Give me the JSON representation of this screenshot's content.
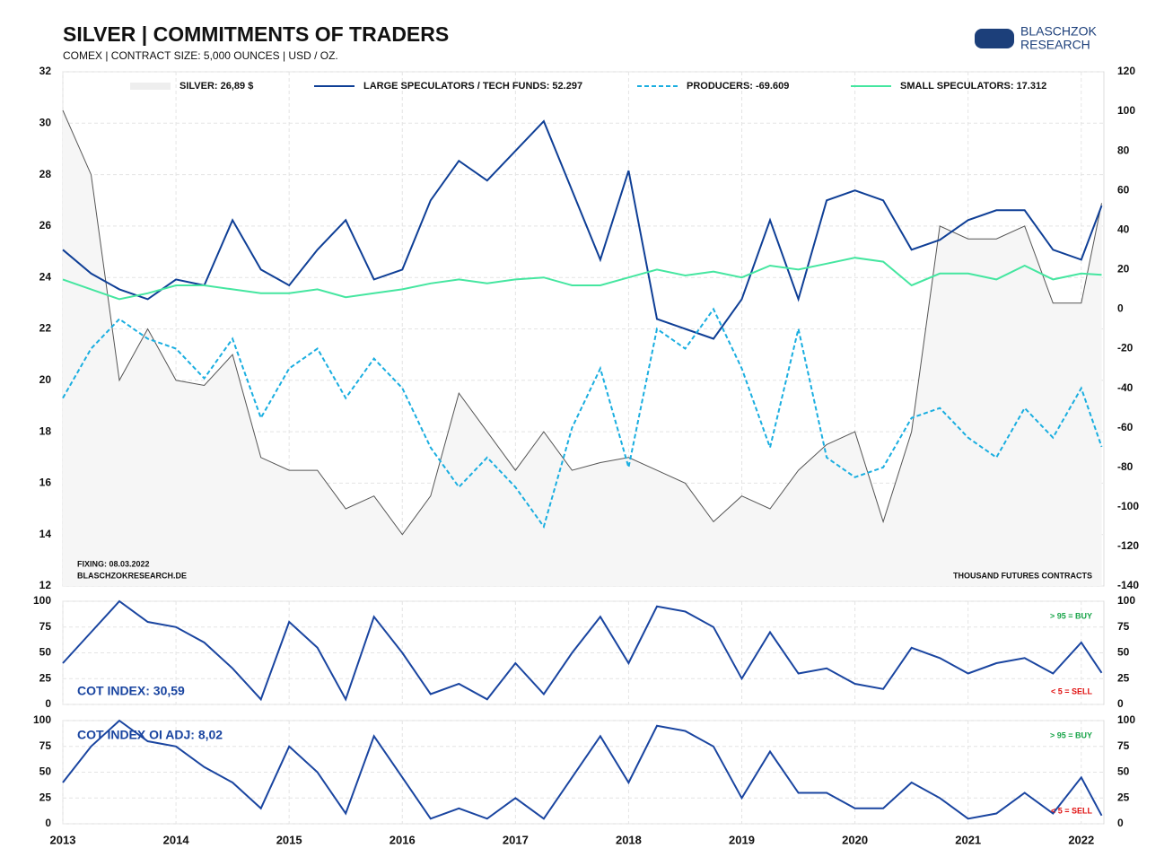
{
  "logo": {
    "line1": "BLASCHZOK",
    "line2": "RESEARCH"
  },
  "chart_data": [
    {
      "type": "line",
      "title": "SILVER | COMMITMENTS OF TRADERS",
      "subtitle": "COMEX | CONTRACT SIZE: 5,000 OUNCES | USD / OZ.",
      "x": [
        2013,
        2013.25,
        2013.5,
        2013.75,
        2014,
        2014.25,
        2014.5,
        2014.75,
        2015,
        2015.25,
        2015.5,
        2015.75,
        2016,
        2016.25,
        2016.5,
        2016.75,
        2017,
        2017.25,
        2017.5,
        2017.75,
        2018,
        2018.25,
        2018.5,
        2018.75,
        2019,
        2019.25,
        2019.5,
        2019.75,
        2020,
        2020.25,
        2020.5,
        2020.75,
        2021,
        2021.25,
        2021.5,
        2021.75,
        2022,
        2022.18
      ],
      "xlim": [
        2013,
        2022.2
      ],
      "ylim": [
        12,
        32
      ],
      "yticks": [
        12,
        14,
        16,
        18,
        20,
        22,
        24,
        26,
        28,
        30,
        32
      ],
      "y2lim": [
        -140,
        120
      ],
      "y2ticks": [
        -140,
        -120,
        -100,
        -80,
        -60,
        -40,
        -20,
        0,
        20,
        40,
        60,
        80,
        100,
        120
      ],
      "grid": true,
      "legend": "top",
      "series": [
        {
          "name": "SILVER: 26,89 $",
          "color": "#555555",
          "area": true,
          "axis": "y",
          "values": [
            30.5,
            28,
            20,
            22,
            20,
            19.8,
            21,
            17,
            16.5,
            16.5,
            15,
            15.5,
            14,
            15.5,
            19.5,
            18,
            16.5,
            18,
            16.5,
            16.8,
            17,
            16.5,
            16,
            14.5,
            15.5,
            15,
            16.5,
            17.5,
            18,
            14.5,
            18,
            26,
            25.5,
            25.5,
            26,
            23,
            23,
            26.89
          ]
        },
        {
          "name": "LARGE SPECULATORS / TECH FUNDS: 52.297",
          "color": "#0f3f96",
          "axis": "y2",
          "values": [
            30,
            18,
            10,
            5,
            15,
            12,
            45,
            20,
            12,
            30,
            45,
            15,
            20,
            55,
            75,
            65,
            80,
            95,
            60,
            25,
            70,
            -5,
            -10,
            -15,
            5,
            45,
            5,
            55,
            60,
            55,
            30,
            35,
            45,
            50,
            50,
            30,
            25,
            52.297
          ]
        },
        {
          "name": "PRODUCERS: -69.609",
          "color": "#1aaee0",
          "dashed": true,
          "axis": "y2",
          "values": [
            -45,
            -20,
            -5,
            -15,
            -20,
            -35,
            -15,
            -55,
            -30,
            -20,
            -45,
            -25,
            -40,
            -70,
            -90,
            -75,
            -90,
            -110,
            -60,
            -30,
            -80,
            -10,
            -20,
            0,
            -30,
            -70,
            -10,
            -75,
            -85,
            -80,
            -55,
            -50,
            -65,
            -75,
            -50,
            -65,
            -40,
            -69.609
          ]
        },
        {
          "name": "SMALL SPECULATORS: 17.312",
          "color": "#45e6a0",
          "axis": "y2",
          "values": [
            15,
            10,
            5,
            8,
            12,
            12,
            10,
            8,
            8,
            10,
            6,
            8,
            10,
            13,
            15,
            13,
            15,
            16,
            12,
            12,
            16,
            20,
            17,
            19,
            16,
            22,
            20,
            23,
            26,
            24,
            12,
            18,
            18,
            15,
            22,
            15,
            18,
            17.312
          ]
        }
      ],
      "notes": {
        "fixing": "FIXING: 08.03.2022",
        "site": "BLASCHZOKRESEARCH.DE",
        "units": "THOUSAND FUTURES CONTRACTS"
      }
    },
    {
      "type": "line",
      "x": [
        2013,
        2013.25,
        2013.5,
        2013.75,
        2014,
        2014.25,
        2014.5,
        2014.75,
        2015,
        2015.25,
        2015.5,
        2015.75,
        2016,
        2016.25,
        2016.5,
        2016.75,
        2017,
        2017.25,
        2017.5,
        2017.75,
        2018,
        2018.25,
        2018.5,
        2018.75,
        2019,
        2019.25,
        2019.5,
        2019.75,
        2020,
        2020.25,
        2020.5,
        2020.75,
        2021,
        2021.25,
        2021.5,
        2021.75,
        2022,
        2022.18
      ],
      "xlim": [
        2013,
        2022.2
      ],
      "ylim": [
        0,
        100
      ],
      "yticks": [
        0,
        25,
        50,
        75,
        100
      ],
      "grid": true,
      "series": [
        {
          "name": "COT INDEX: 30,59",
          "color": "#1a45a0",
          "values": [
            40,
            70,
            100,
            80,
            75,
            60,
            35,
            5,
            80,
            55,
            5,
            85,
            50,
            10,
            20,
            5,
            40,
            10,
            50,
            85,
            40,
            95,
            90,
            75,
            25,
            70,
            30,
            35,
            20,
            15,
            55,
            45,
            30,
            40,
            45,
            30,
            60,
            30.59
          ]
        }
      ],
      "notes": {
        "buy": "> 95 = BUY",
        "sell": "< 5 = SELL"
      }
    },
    {
      "type": "line",
      "x": [
        2013,
        2013.25,
        2013.5,
        2013.75,
        2014,
        2014.25,
        2014.5,
        2014.75,
        2015,
        2015.25,
        2015.5,
        2015.75,
        2016,
        2016.25,
        2016.5,
        2016.75,
        2017,
        2017.25,
        2017.5,
        2017.75,
        2018,
        2018.25,
        2018.5,
        2018.75,
        2019,
        2019.25,
        2019.5,
        2019.75,
        2020,
        2020.25,
        2020.5,
        2020.75,
        2021,
        2021.25,
        2021.5,
        2021.75,
        2022,
        2022.18
      ],
      "xlim": [
        2013,
        2022.2
      ],
      "xticks": [
        2013,
        2014,
        2015,
        2016,
        2017,
        2018,
        2019,
        2020,
        2021,
        2022
      ],
      "ylim": [
        0,
        100
      ],
      "yticks": [
        0,
        25,
        50,
        75,
        100
      ],
      "grid": true,
      "series": [
        {
          "name": "COT INDEX OI ADJ: 8,02",
          "color": "#1a45a0",
          "values": [
            40,
            75,
            100,
            80,
            75,
            55,
            40,
            15,
            75,
            50,
            10,
            85,
            45,
            5,
            15,
            5,
            25,
            5,
            45,
            85,
            40,
            95,
            90,
            75,
            25,
            70,
            30,
            30,
            15,
            15,
            40,
            25,
            5,
            10,
            30,
            10,
            45,
            8.02
          ]
        }
      ],
      "notes": {
        "buy": "> 95 = BUY",
        "sell": "< 5 = SELL"
      }
    }
  ]
}
